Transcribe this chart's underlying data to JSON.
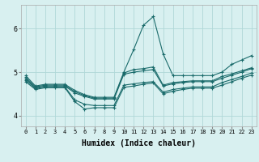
{
  "xlabel": "Humidex (Indice chaleur)",
  "bg_color": "#d8f0f0",
  "grid_color": "#b0d8d8",
  "line_color": "#1a6b6b",
  "x_min": -0.5,
  "x_max": 23.5,
  "y_min": 3.75,
  "y_max": 6.55,
  "yticks": [
    4,
    5,
    6
  ],
  "xticks": [
    0,
    1,
    2,
    3,
    4,
    5,
    6,
    7,
    8,
    9,
    10,
    11,
    12,
    13,
    14,
    15,
    16,
    17,
    18,
    19,
    20,
    21,
    22,
    23
  ],
  "lines": [
    [
      4.92,
      4.68,
      4.72,
      4.72,
      4.72,
      4.58,
      4.48,
      4.42,
      4.42,
      4.42,
      5.0,
      5.52,
      6.08,
      6.28,
      5.42,
      4.92,
      4.92,
      4.92,
      4.92,
      4.92,
      5.0,
      5.18,
      5.28,
      5.38
    ],
    [
      4.88,
      4.66,
      4.7,
      4.7,
      4.7,
      4.55,
      4.46,
      4.4,
      4.4,
      4.4,
      4.98,
      5.06,
      5.08,
      5.12,
      4.7,
      4.76,
      4.78,
      4.8,
      4.8,
      4.8,
      4.9,
      4.96,
      5.03,
      5.1
    ],
    [
      4.85,
      4.64,
      4.68,
      4.68,
      4.68,
      4.52,
      4.44,
      4.38,
      4.38,
      4.38,
      4.95,
      5.0,
      5.03,
      5.06,
      4.68,
      4.73,
      4.76,
      4.78,
      4.78,
      4.78,
      4.86,
      4.93,
      5.0,
      5.08
    ],
    [
      4.82,
      4.62,
      4.66,
      4.66,
      4.66,
      4.36,
      4.26,
      4.23,
      4.23,
      4.23,
      4.7,
      4.73,
      4.76,
      4.78,
      4.54,
      4.6,
      4.63,
      4.66,
      4.66,
      4.66,
      4.76,
      4.83,
      4.9,
      4.98
    ],
    [
      4.78,
      4.6,
      4.64,
      4.64,
      4.64,
      4.32,
      4.15,
      4.18,
      4.18,
      4.18,
      4.65,
      4.68,
      4.72,
      4.75,
      4.5,
      4.56,
      4.6,
      4.63,
      4.63,
      4.63,
      4.7,
      4.78,
      4.86,
      4.93
    ]
  ],
  "xlabel_fontsize": 7,
  "tick_fontsize_x": 5,
  "tick_fontsize_y": 6
}
